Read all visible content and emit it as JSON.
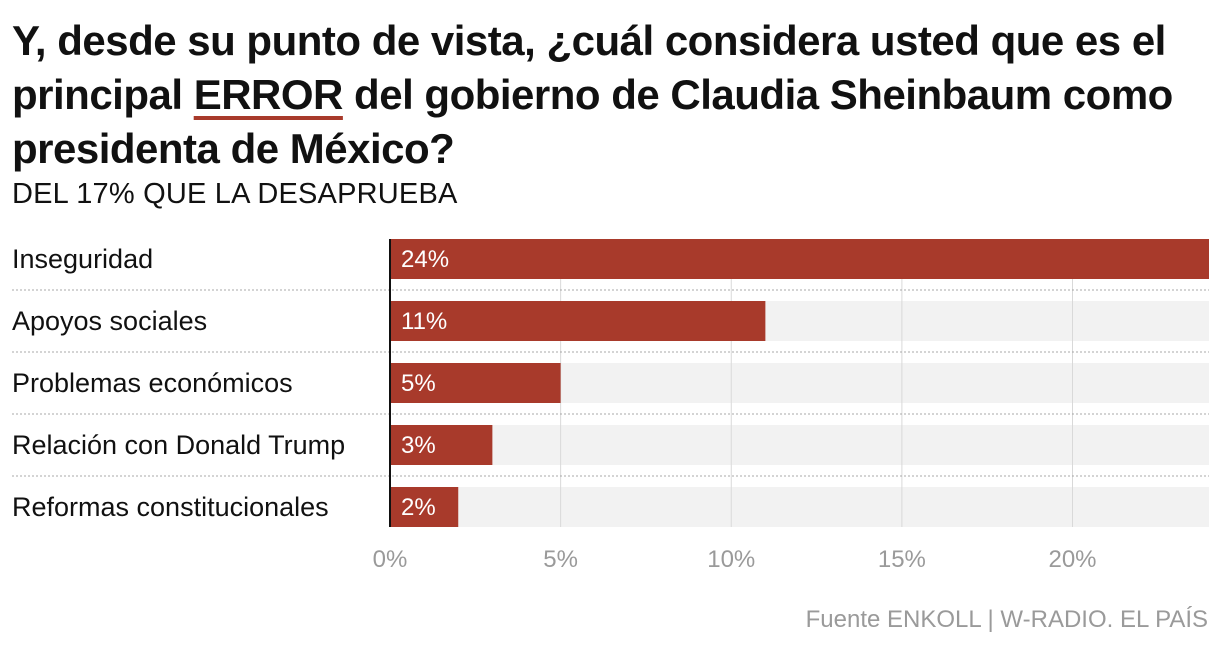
{
  "header": {
    "title_before": "Y, desde su punto de vista, ¿cuál considera usted que es el principal ",
    "title_highlight": "ERROR",
    "title_after": " del gobierno de Claudia Sheinbaum como presidenta de México?",
    "subtitle": "DEL 17% QUE LA DESAPRUEBA"
  },
  "colors": {
    "bar": "#a83a2b",
    "track": "#f2f2f2",
    "grid": "#d9d9d9",
    "axis": "#111111",
    "tick_text": "#9a9a9a"
  },
  "chart_data": {
    "type": "bar",
    "orientation": "horizontal",
    "title": "Y, desde su punto de vista, ¿cuál considera usted que es el principal ERROR del gobierno de Claudia Sheinbaum como presidenta de México?",
    "subtitle": "DEL 17% QUE LA DESAPRUEBA",
    "categories": [
      "Inseguridad",
      "Apoyos sociales",
      "Problemas económicos",
      "Relación con Donald Trump",
      "Reformas constitucionales"
    ],
    "values": [
      24,
      11,
      5,
      3,
      2
    ],
    "value_labels": [
      "24%",
      "11%",
      "5%",
      "3%",
      "2%"
    ],
    "xlim": [
      0,
      24
    ],
    "ticks": [
      0,
      5,
      10,
      15,
      20
    ],
    "tick_labels": [
      "0%",
      "5%",
      "10%",
      "15%",
      "20%"
    ],
    "xlabel": "",
    "ylabel": "",
    "grid": true
  },
  "footer": {
    "source": "Fuente ENKOLL | W-RADIO. EL PAÍS"
  }
}
